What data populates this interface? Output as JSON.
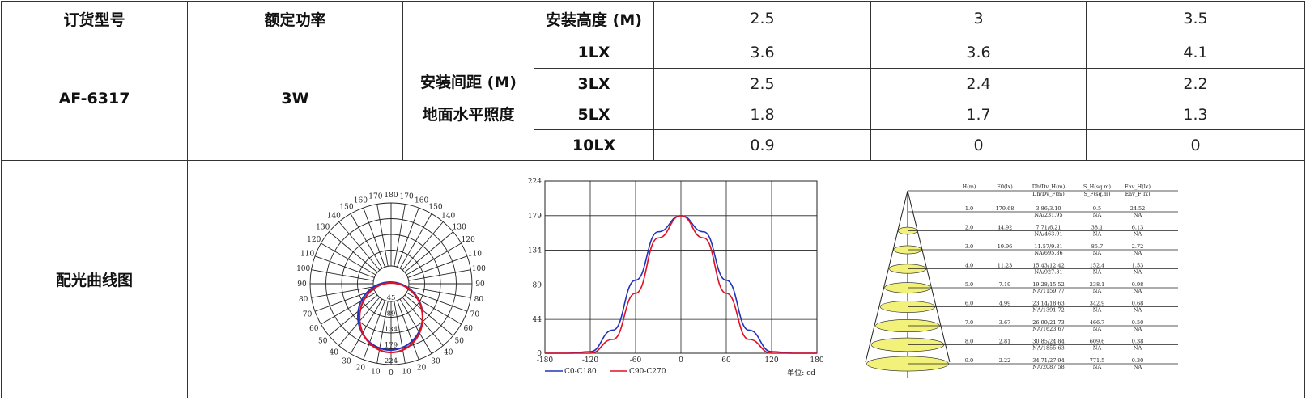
{
  "header": {
    "model_label": "订货型号",
    "power_label": "额定功率",
    "mount_height_label": "安装高度 (M)",
    "heights": [
      "2.5",
      "3",
      "3.5"
    ]
  },
  "product": {
    "model": "AF-6317",
    "power": "3W",
    "spacing_label_1": "安装间距 (M)",
    "spacing_label_2": "地面水平照度"
  },
  "illuminance_rows": [
    {
      "lux": "1LX",
      "values": [
        "3.6",
        "3.6",
        "4.1"
      ]
    },
    {
      "lux": "3LX",
      "values": [
        "2.5",
        "2.4",
        "2.2"
      ]
    },
    {
      "lux": "5LX",
      "values": [
        "1.8",
        "1.7",
        "1.3"
      ]
    },
    {
      "lux": "10LX",
      "values": [
        "0.9",
        "0",
        "0"
      ]
    }
  ],
  "curve_label": "配光曲线图",
  "polar": {
    "angles_left": [
      "180",
      "170",
      "160",
      "150",
      "140",
      "130",
      "120",
      "110",
      "100",
      "90",
      "80",
      "70",
      "60",
      "50",
      "40",
      "30",
      "20",
      "10",
      "0"
    ],
    "angles_right": [
      "170",
      "160",
      "150",
      "140",
      "130",
      "120",
      "110",
      "100",
      "90",
      "80",
      "70",
      "60",
      "50",
      "40",
      "30",
      "20",
      "10"
    ],
    "radial_labels": [
      "45",
      "89",
      "134",
      "179",
      "224"
    ],
    "colors": {
      "c0": "#2233bb",
      "c90": "#dd1122"
    }
  },
  "chart_data": {
    "type": "line",
    "x": [
      -180,
      -150,
      -120,
      -90,
      -60,
      -30,
      0,
      30,
      60,
      90,
      120,
      150,
      180
    ],
    "xticks": [
      "-180",
      "-120",
      "-60",
      "0",
      "60",
      "120",
      "180"
    ],
    "yticks": [
      "0",
      "44",
      "89",
      "134",
      "179",
      "224"
    ],
    "xlim": [
      -180,
      180
    ],
    "ylim": [
      0,
      224
    ],
    "unit": "单位: cd",
    "grid": true,
    "series": [
      {
        "name": "C0-C180",
        "color": "#2233bb",
        "values": [
          0,
          0,
          2,
          30,
          95,
          158,
          179,
          158,
          95,
          30,
          2,
          0,
          0
        ]
      },
      {
        "name": "C90-C270",
        "color": "#dd1122",
        "values": [
          0,
          0,
          0,
          18,
          78,
          150,
          179,
          150,
          78,
          18,
          0,
          0,
          0
        ]
      }
    ]
  },
  "illum_table": {
    "headers": [
      "H(m)",
      "E0(lx)",
      "Dh/Dv_H(m)",
      "S_H(sq.m)",
      "Eav_H(lx)"
    ],
    "headers2": [
      "",
      "",
      "Dh/Dv_F(m)",
      "S_F(sq.m)",
      "Eav_F(lx)"
    ],
    "rows": [
      {
        "h": "1.0",
        "e0": "179.68",
        "d1": "3.86/3.10",
        "d2": "NA/231.95",
        "s": "9.5",
        "e": "24.52"
      },
      {
        "h": "2.0",
        "e0": "44.92",
        "d1": "7.71/6.21",
        "d2": "NA/463.91",
        "s": "38.1",
        "e": "6.13"
      },
      {
        "h": "3.0",
        "e0": "19.96",
        "d1": "11.57/9.31",
        "d2": "NA/695.86",
        "s": "85.7",
        "e": "2.72"
      },
      {
        "h": "4.0",
        "e0": "11.23",
        "d1": "15.43/12.42",
        "d2": "NA/927.81",
        "s": "152.4",
        "e": "1.53"
      },
      {
        "h": "5.0",
        "e0": "7.19",
        "d1": "19.28/15.52",
        "d2": "NA/1159.77",
        "s": "238.1",
        "e": "0.98"
      },
      {
        "h": "6.0",
        "e0": "4.99",
        "d1": "23.14/18.63",
        "d2": "NA/1391.72",
        "s": "342.9",
        "e": "0.68"
      },
      {
        "h": "7.0",
        "e0": "3.67",
        "d1": "26.99/21.73",
        "d2": "NA/1623.67",
        "s": "466.7",
        "e": "0.50"
      },
      {
        "h": "8.0",
        "e0": "2.81",
        "d1": "30.85/24.84",
        "d2": "NA/1855.63",
        "s": "609.6",
        "e": "0.38"
      },
      {
        "h": "9.0",
        "e0": "2.22",
        "d1": "34.71/27.94",
        "d2": "NA/2087.58",
        "s": "771.5",
        "e": "0.30"
      }
    ],
    "na": "NA"
  }
}
